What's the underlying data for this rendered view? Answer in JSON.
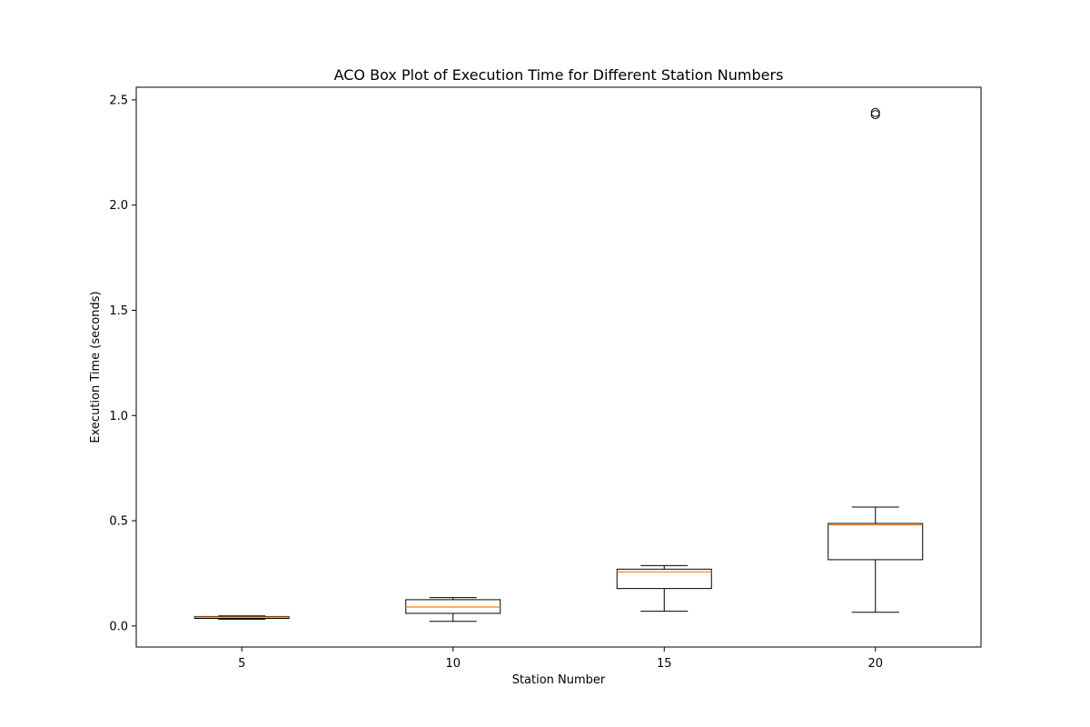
{
  "chart_data": {
    "type": "box",
    "title": "ACO Box Plot of Execution Time for Different Station Numbers",
    "xlabel": "Station Number",
    "ylabel": "Execution Time (seconds)",
    "categories": [
      "5",
      "10",
      "15",
      "20"
    ],
    "ylim": [
      -0.1,
      2.56
    ],
    "yticks": [
      0.0,
      0.5,
      1.0,
      1.5,
      2.0,
      2.5
    ],
    "ytick_labels": [
      "0.0",
      "0.5",
      "1.0",
      "1.5",
      "2.0",
      "2.5"
    ],
    "grid": false,
    "legend": "none",
    "boxes": [
      {
        "category": "5",
        "whisker_low": 0.032,
        "q1": 0.036,
        "median": 0.042,
        "q3": 0.045,
        "whisker_high": 0.048,
        "outliers": []
      },
      {
        "category": "10",
        "whisker_low": 0.022,
        "q1": 0.06,
        "median": 0.09,
        "q3": 0.125,
        "whisker_high": 0.135,
        "outliers": []
      },
      {
        "category": "15",
        "whisker_low": 0.07,
        "q1": 0.178,
        "median": 0.257,
        "q3": 0.27,
        "whisker_high": 0.287,
        "outliers": []
      },
      {
        "category": "20",
        "whisker_low": 0.065,
        "q1": 0.315,
        "median": 0.48,
        "q3": 0.487,
        "whisker_high": 0.565,
        "outliers": [
          2.43,
          2.44
        ]
      }
    ],
    "colors": {
      "box": "#000000",
      "median": "#ff7f0e",
      "axes": "#000000"
    }
  }
}
